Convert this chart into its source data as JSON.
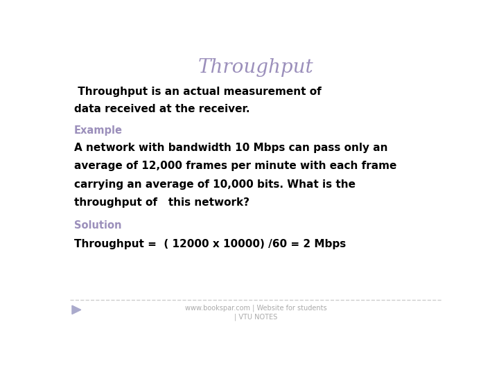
{
  "title": "Throughput",
  "title_color": "#9b8fbb",
  "title_fontsize": 20,
  "bg_color": "#ffffff",
  "line1": " Throughput is an actual measurement of",
  "line2": "data received at the receiver.",
  "body1_fontsize": 11,
  "body1_color": "#000000",
  "example_label": "Example",
  "example_color": "#9b8fbb",
  "example_fontsize": 10.5,
  "example_body_line1": "A network with bandwidth 10 Mbps can pass only an",
  "example_body_line2": "average of 12,000 frames per minute with each frame",
  "example_body_line3": "carrying an average of 10,000 bits. What is the",
  "example_body_line4": "throughput of   this network?",
  "example_body_fontsize": 11,
  "example_body_color": "#000000",
  "solution_label": "Solution",
  "solution_color": "#9b8fbb",
  "solution_fontsize": 10.5,
  "solution_body": "Throughput =  ( 12000 x 10000) /60 = 2 Mbps",
  "solution_body_fontsize": 11,
  "solution_body_color": "#000000",
  "footer_line1": "www.bookspar.com | Website for students",
  "footer_line2": "| VTU NOTES",
  "footer_fontsize": 7,
  "footer_color": "#aaaaaa",
  "separator_color": "#cccccc",
  "arrow_color": "#aaaacc"
}
